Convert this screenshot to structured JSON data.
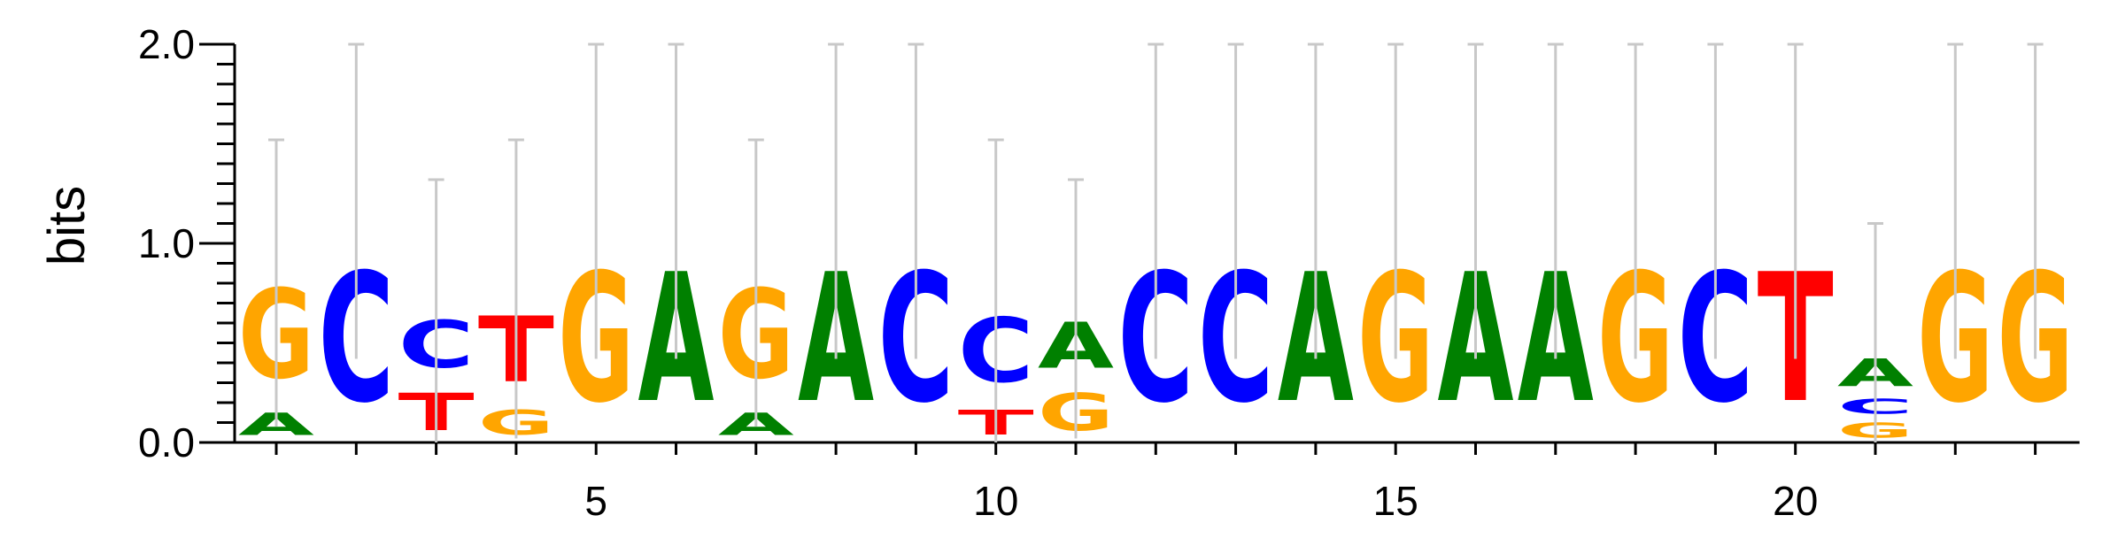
{
  "chart_data": {
    "type": "sequence-logo",
    "ylabel": "bits",
    "ylim": [
      0,
      2
    ],
    "yticks": [
      "0.0",
      "1.0",
      "2.0"
    ],
    "xticks": [
      {
        "position": 5,
        "label": "5"
      },
      {
        "position": 10,
        "label": "10"
      },
      {
        "position": 15,
        "label": "15"
      },
      {
        "position": 20,
        "label": "20"
      }
    ],
    "colors": {
      "A": "#008000",
      "C": "#0000ff",
      "G": "#ffa500",
      "T": "#ff0000",
      "errorbar": "#c8c8c8"
    },
    "positions": [
      {
        "pos": 1,
        "error": [
          0.08,
          1.52
        ],
        "letters": [
          {
            "base": "A",
            "bits": 0.18
          },
          {
            "base": "G",
            "bits": 0.72
          }
        ]
      },
      {
        "pos": 2,
        "error": [
          0.42,
          2.0
        ],
        "letters": [
          {
            "base": "C",
            "bits": 1.04
          }
        ]
      },
      {
        "pos": 3,
        "error": [
          0.0,
          1.32
        ],
        "letters": [
          {
            "base": "T",
            "bits": 0.3
          },
          {
            "base": "C",
            "bits": 0.38
          }
        ]
      },
      {
        "pos": 4,
        "error": [
          0.02,
          1.52
        ],
        "letters": [
          {
            "base": "G",
            "bits": 0.2
          },
          {
            "base": "T",
            "bits": 0.53
          }
        ]
      },
      {
        "pos": 5,
        "error": [
          0.42,
          2.0
        ],
        "letters": [
          {
            "base": "G",
            "bits": 1.04
          }
        ]
      },
      {
        "pos": 6,
        "error": [
          0.42,
          2.0
        ],
        "letters": [
          {
            "base": "A",
            "bits": 1.04
          }
        ]
      },
      {
        "pos": 7,
        "error": [
          0.08,
          1.52
        ],
        "letters": [
          {
            "base": "A",
            "bits": 0.18
          },
          {
            "base": "G",
            "bits": 0.72
          }
        ]
      },
      {
        "pos": 8,
        "error": [
          0.42,
          2.0
        ],
        "letters": [
          {
            "base": "A",
            "bits": 1.04
          }
        ]
      },
      {
        "pos": 9,
        "error": [
          0.42,
          2.0
        ],
        "letters": [
          {
            "base": "C",
            "bits": 1.04
          }
        ]
      },
      {
        "pos": 10,
        "error": [
          0.0,
          1.52
        ],
        "letters": [
          {
            "base": "T",
            "bits": 0.2
          },
          {
            "base": "C",
            "bits": 0.52
          }
        ]
      },
      {
        "pos": 11,
        "error": [
          0.02,
          1.32
        ],
        "letters": [
          {
            "base": "G",
            "bits": 0.3
          },
          {
            "base": "A",
            "bits": 0.37
          }
        ]
      },
      {
        "pos": 12,
        "error": [
          0.42,
          2.0
        ],
        "letters": [
          {
            "base": "C",
            "bits": 1.04
          }
        ]
      },
      {
        "pos": 13,
        "error": [
          0.42,
          2.0
        ],
        "letters": [
          {
            "base": "C",
            "bits": 1.04
          }
        ]
      },
      {
        "pos": 14,
        "error": [
          0.42,
          2.0
        ],
        "letters": [
          {
            "base": "A",
            "bits": 1.04
          }
        ]
      },
      {
        "pos": 15,
        "error": [
          0.42,
          2.0
        ],
        "letters": [
          {
            "base": "G",
            "bits": 1.04
          }
        ]
      },
      {
        "pos": 16,
        "error": [
          0.42,
          2.0
        ],
        "letters": [
          {
            "base": "A",
            "bits": 1.04
          }
        ]
      },
      {
        "pos": 17,
        "error": [
          0.42,
          2.0
        ],
        "letters": [
          {
            "base": "A",
            "bits": 1.04
          }
        ]
      },
      {
        "pos": 18,
        "error": [
          0.42,
          2.0
        ],
        "letters": [
          {
            "base": "G",
            "bits": 1.04
          }
        ]
      },
      {
        "pos": 19,
        "error": [
          0.42,
          2.0
        ],
        "letters": [
          {
            "base": "C",
            "bits": 1.04
          }
        ]
      },
      {
        "pos": 20,
        "error": [
          0.42,
          2.0
        ],
        "letters": [
          {
            "base": "T",
            "bits": 1.04
          }
        ]
      },
      {
        "pos": 21,
        "error": [
          0.0,
          1.1
        ],
        "letters": [
          {
            "base": "G",
            "bits": 0.12
          },
          {
            "base": "C",
            "bits": 0.12
          },
          {
            "base": "A",
            "bits": 0.22
          }
        ]
      },
      {
        "pos": 22,
        "error": [
          0.42,
          2.0
        ],
        "letters": [
          {
            "base": "G",
            "bits": 1.04
          }
        ]
      },
      {
        "pos": 23,
        "error": [
          0.42,
          2.0
        ],
        "letters": [
          {
            "base": "G",
            "bits": 1.04
          }
        ]
      }
    ]
  }
}
